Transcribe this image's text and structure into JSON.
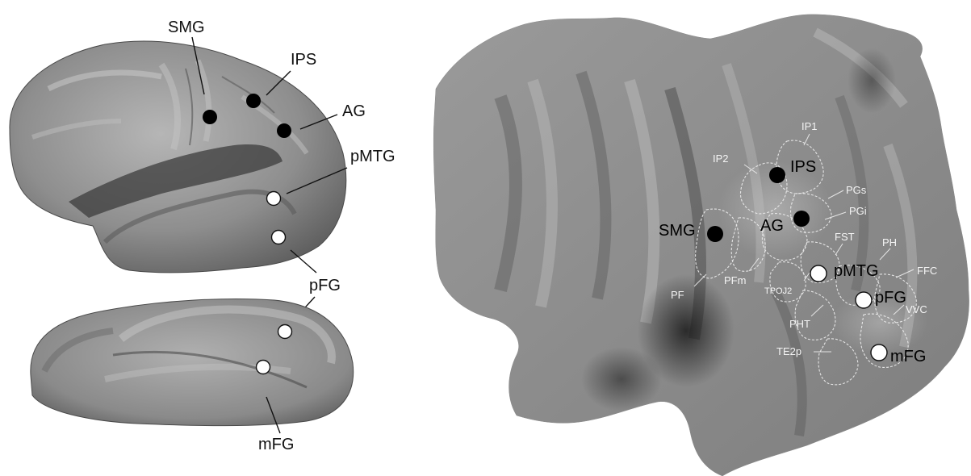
{
  "lateral_view": {
    "labels": {
      "smg": "SMG",
      "ips": "IPS",
      "ag": "AG",
      "pmtg": "pMTG",
      "pfg": "pFG"
    },
    "marker_colors": {
      "filled": "#000000",
      "open": "#ffffff"
    }
  },
  "ventral_view": {
    "labels": {
      "mfg": "mFG"
    }
  },
  "flat_map": {
    "roi_labels": {
      "smg": "SMG",
      "ips": "IPS",
      "ag": "AG",
      "pmtg": "pMTG",
      "pfg": "pFG",
      "mfg": "mFG"
    },
    "parcel_labels": {
      "ip1": "IP1",
      "ip2": "IP2",
      "pgs": "PGs",
      "pgi": "PGi",
      "fst": "FST",
      "ph": "PH",
      "ffc": "FFC",
      "vvc": "VVC",
      "pf": "PF",
      "pfm": "PFm",
      "tpoj2": "TPOJ2",
      "pht": "PHT",
      "te2p": "TE2p"
    }
  }
}
